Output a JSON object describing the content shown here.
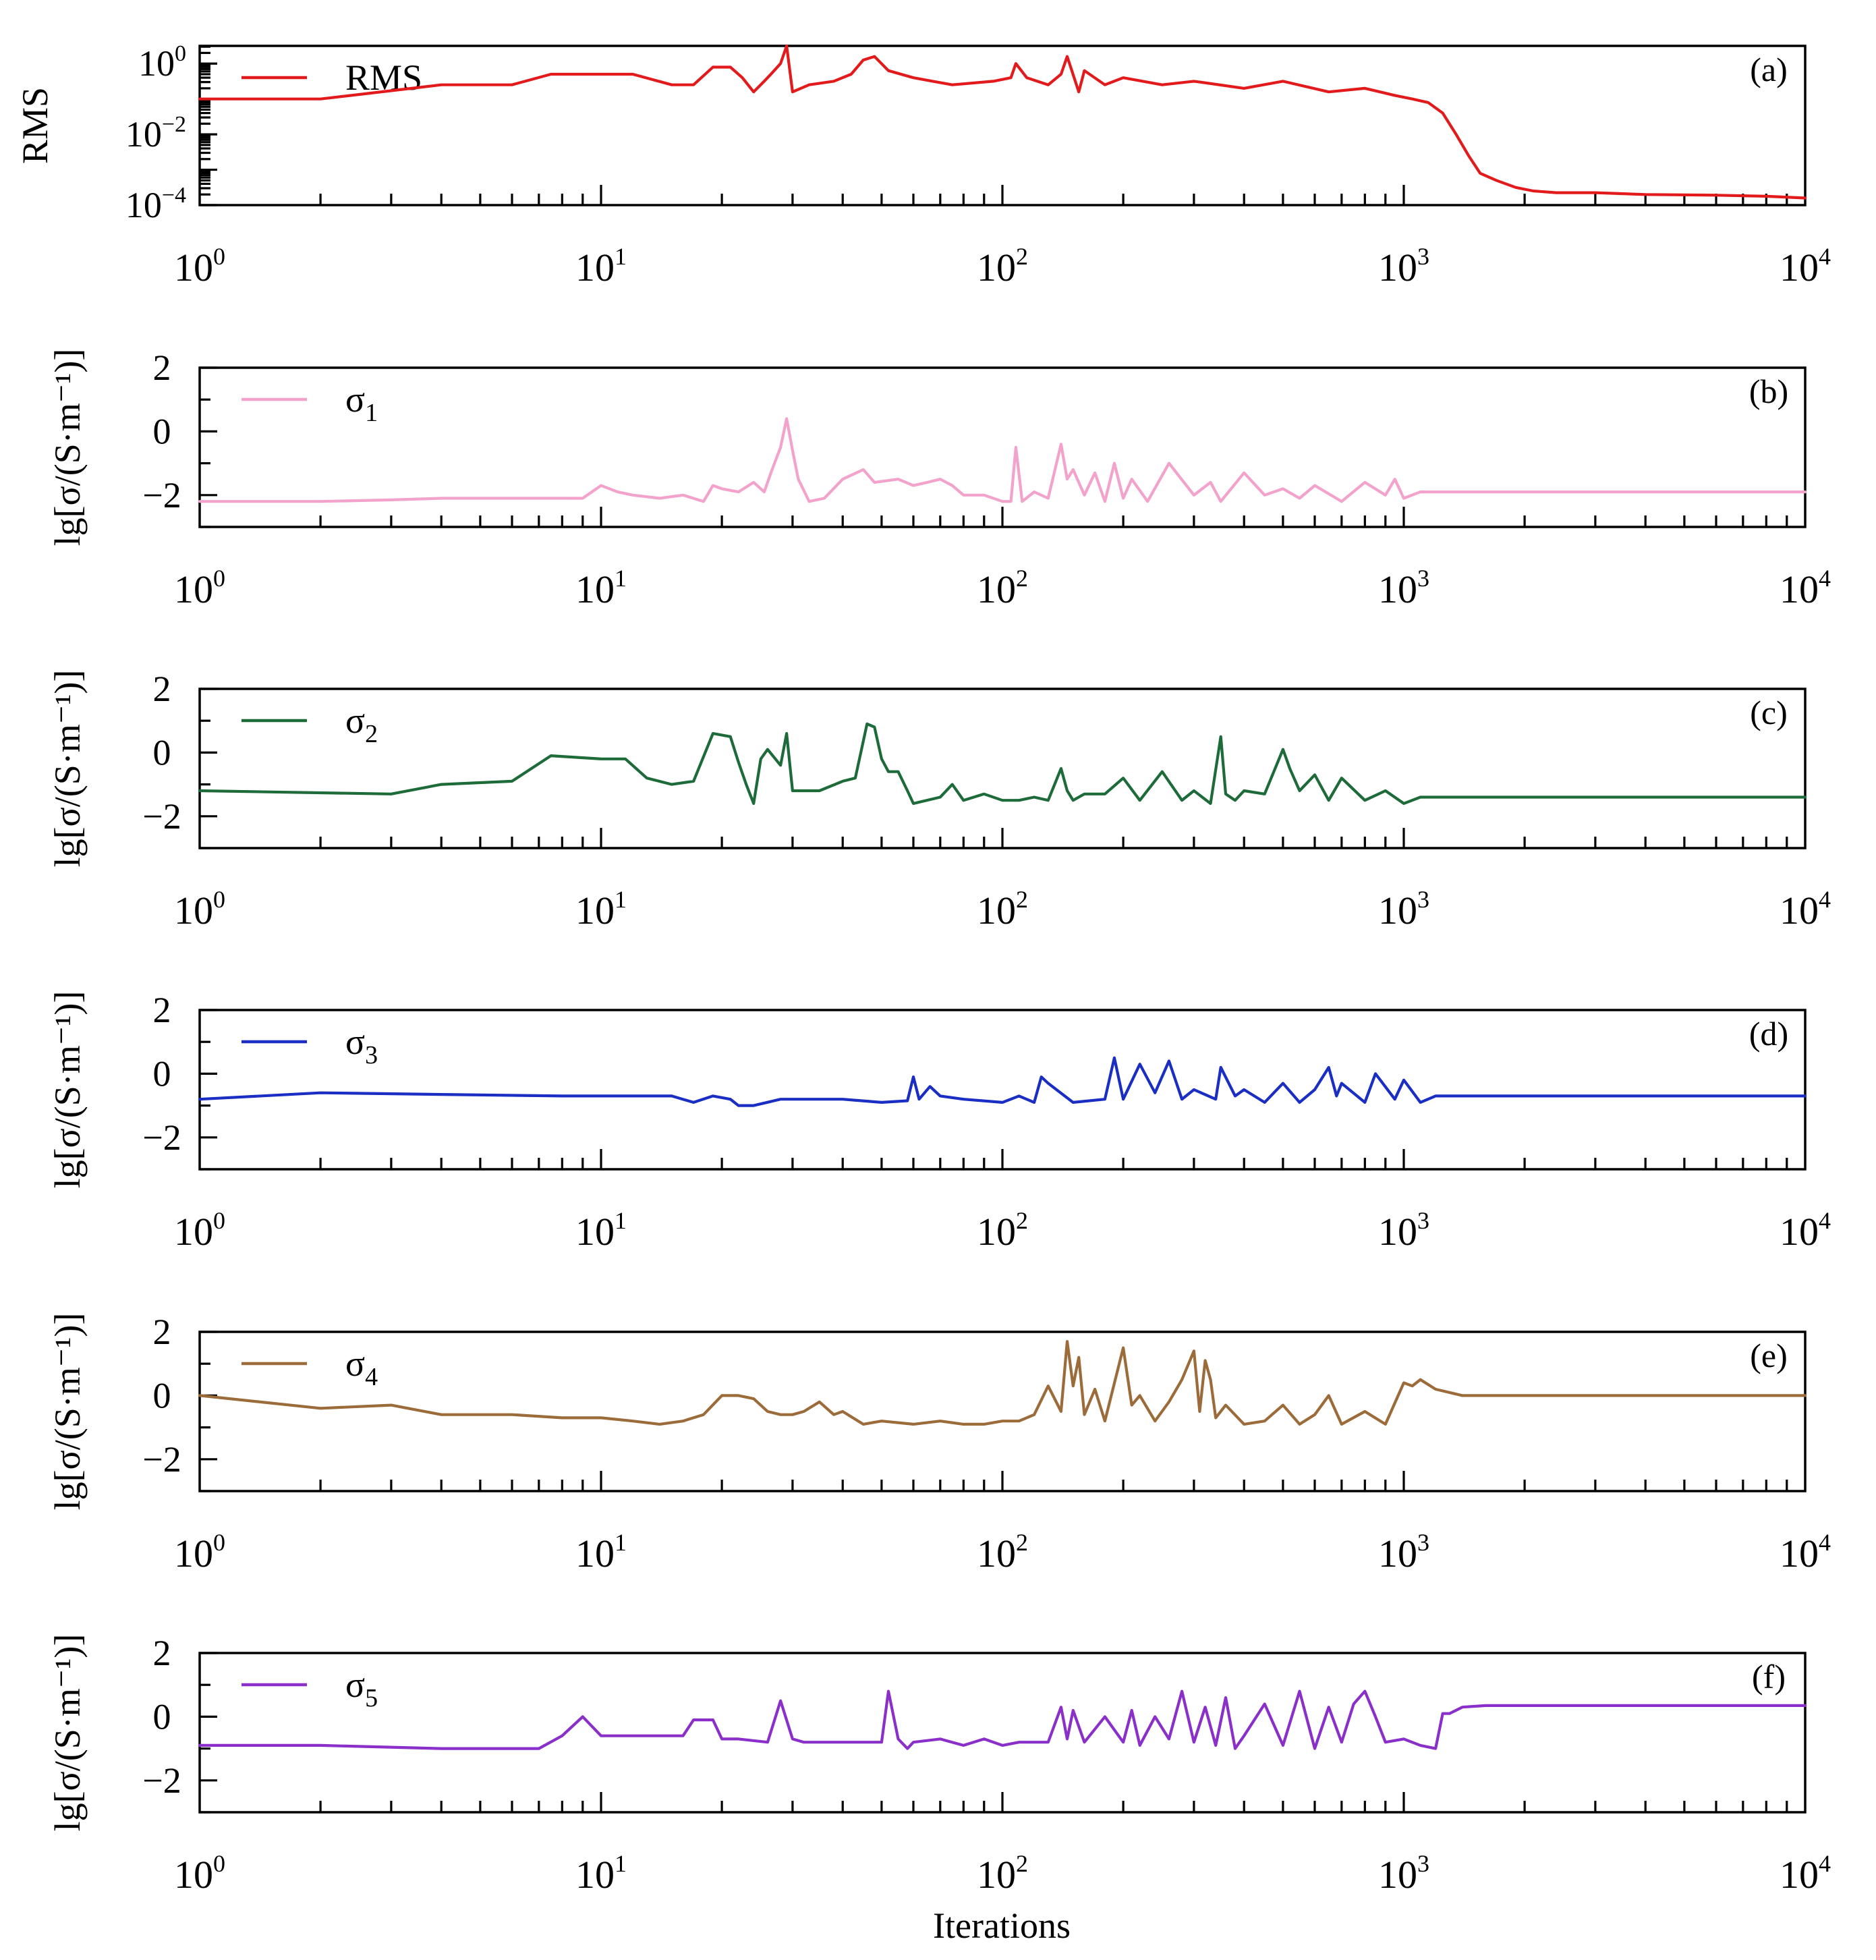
{
  "figure": {
    "x_axis_title": "Iterations",
    "x_tick_labels": [
      {
        "base": "10",
        "exp": "0"
      },
      {
        "base": "10",
        "exp": "1"
      },
      {
        "base": "10",
        "exp": "2"
      },
      {
        "base": "10",
        "exp": "3"
      },
      {
        "base": "10",
        "exp": "4"
      }
    ]
  },
  "chart_data": [
    {
      "type": "line",
      "panel_label": "(a)",
      "ylabel": "RMS",
      "yscale": "log",
      "xscale": "log",
      "xlim": [
        1,
        10000
      ],
      "ylim_log10": [
        -4,
        0.5
      ],
      "y_tick_labels": [
        {
          "base": "10",
          "exp": "0",
          "log10": 0
        },
        {
          "base": "10",
          "exp": "−2",
          "log10": -2
        },
        {
          "base": "10",
          "exp": "−4",
          "log10": -4
        }
      ],
      "legend": {
        "label": "RMS",
        "sub": ""
      },
      "color": "#e31a1c",
      "series_log10_rms": {
        "x": [
          1,
          2,
          4,
          6,
          7.5,
          10,
          12,
          15,
          17,
          19,
          21,
          22.5,
          24,
          25.5,
          26.5,
          28,
          29,
          30,
          33,
          38,
          42,
          45,
          48,
          52,
          60,
          75,
          95,
          105,
          108,
          115,
          130,
          140,
          145,
          155,
          160,
          180,
          200,
          250,
          300,
          400,
          500,
          650,
          800,
          950,
          1050,
          1150,
          1250,
          1350,
          1450,
          1550,
          1700,
          1900,
          2100,
          2400,
          3000,
          4000,
          6000,
          8000,
          10000
        ],
        "y": [
          -1,
          -1,
          -0.6,
          -0.6,
          -0.3,
          -0.3,
          -0.3,
          -0.6,
          -0.6,
          -0.1,
          -0.1,
          -0.4,
          -0.8,
          -0.5,
          -0.3,
          0,
          0.5,
          -0.8,
          -0.6,
          -0.5,
          -0.3,
          0.1,
          0.2,
          -0.2,
          -0.4,
          -0.6,
          -0.5,
          -0.4,
          0,
          -0.4,
          -0.6,
          -0.3,
          0.2,
          -0.8,
          -0.2,
          -0.6,
          -0.4,
          -0.6,
          -0.5,
          -0.7,
          -0.5,
          -0.8,
          -0.7,
          -0.9,
          -1,
          -1.1,
          -1.4,
          -2,
          -2.6,
          -3.1,
          -3.3,
          -3.5,
          -3.6,
          -3.65,
          -3.65,
          -3.7,
          -3.72,
          -3.75,
          -3.8
        ]
      }
    },
    {
      "type": "line",
      "panel_label": "(b)",
      "ylabel": "lg[σ/(S·m⁻¹)]",
      "xscale": "log",
      "xlim": [
        1,
        10000
      ],
      "ylim": [
        -3,
        2
      ],
      "y_ticks": [
        2,
        0,
        -2
      ],
      "y_tick_labels": [
        "2",
        "0",
        "−2"
      ],
      "legend": {
        "label": "σ",
        "sub": "1"
      },
      "color": "#f2a2cb",
      "series": {
        "x": [
          1,
          2,
          3,
          4,
          6,
          8,
          9,
          10,
          11,
          12,
          14,
          16,
          18,
          19,
          20,
          22,
          24,
          25.5,
          26.5,
          28,
          29,
          30,
          31,
          33,
          36,
          40,
          45,
          48,
          55,
          60,
          65,
          70,
          75,
          80,
          90,
          100,
          105,
          108,
          112,
          120,
          130,
          140,
          145,
          150,
          160,
          170,
          180,
          190,
          200,
          210,
          230,
          260,
          300,
          330,
          350,
          400,
          450,
          500,
          550,
          600,
          700,
          800,
          900,
          950,
          1000,
          1100,
          1200,
          1500,
          2000,
          4000,
          10000
        ],
        "y": [
          -2.2,
          -2.2,
          -2.15,
          -2.1,
          -2.1,
          -2.1,
          -2.1,
          -1.7,
          -1.9,
          -2,
          -2.1,
          -2,
          -2.2,
          -1.7,
          -1.8,
          -1.9,
          -1.6,
          -1.9,
          -1.3,
          -0.5,
          0.4,
          -0.6,
          -1.5,
          -2.2,
          -2.1,
          -1.5,
          -1.2,
          -1.6,
          -1.5,
          -1.7,
          -1.6,
          -1.5,
          -1.7,
          -2,
          -2,
          -2.2,
          -2.2,
          -0.5,
          -2.2,
          -1.9,
          -2.1,
          -0.4,
          -1.5,
          -1.2,
          -2,
          -1.3,
          -2.2,
          -1.0,
          -2.1,
          -1.5,
          -2.2,
          -1.0,
          -2.0,
          -1.6,
          -2.2,
          -1.3,
          -2.0,
          -1.8,
          -2.1,
          -1.7,
          -2.2,
          -1.6,
          -2.0,
          -1.5,
          -2.1,
          -1.9,
          -1.9,
          -1.9,
          -1.9,
          -1.9,
          -1.9
        ]
      }
    },
    {
      "type": "line",
      "panel_label": "(c)",
      "ylabel": "lg[σ/(S·m⁻¹)]",
      "xscale": "log",
      "xlim": [
        1,
        10000
      ],
      "ylim": [
        -3,
        2
      ],
      "y_ticks": [
        2,
        0,
        -2
      ],
      "y_tick_labels": [
        "2",
        "0",
        "−2"
      ],
      "legend": {
        "label": "σ",
        "sub": "2"
      },
      "color": "#1e6b3a",
      "series": {
        "x": [
          1,
          3,
          4,
          6,
          7.5,
          10,
          11.5,
          13,
          15,
          17,
          19,
          21,
          22,
          23,
          24,
          25,
          26,
          28,
          29,
          30,
          32,
          35,
          40,
          43,
          46,
          48,
          50,
          52,
          55,
          58,
          60,
          70,
          75,
          80,
          90,
          100,
          110,
          120,
          130,
          140,
          145,
          150,
          160,
          180,
          200,
          220,
          250,
          280,
          300,
          330,
          350,
          360,
          380,
          400,
          450,
          500,
          520,
          550,
          600,
          650,
          700,
          800,
          900,
          1000,
          1100,
          1200,
          1500,
          2000,
          4000,
          10000
        ],
        "y": [
          -1.2,
          -1.3,
          -1.0,
          -0.9,
          -0.1,
          -0.2,
          -0.2,
          -0.8,
          -1.0,
          -0.9,
          0.6,
          0.5,
          -0.3,
          -1.0,
          -1.6,
          -0.2,
          0.1,
          -0.4,
          0.6,
          -1.2,
          -1.2,
          -1.2,
          -0.9,
          -0.8,
          0.9,
          0.8,
          -0.2,
          -0.6,
          -0.6,
          -1.2,
          -1.6,
          -1.4,
          -1.0,
          -1.5,
          -1.3,
          -1.5,
          -1.5,
          -1.4,
          -1.5,
          -0.5,
          -1.2,
          -1.5,
          -1.3,
          -1.3,
          -0.8,
          -1.5,
          -0.6,
          -1.5,
          -1.2,
          -1.6,
          0.5,
          -1.3,
          -1.5,
          -1.2,
          -1.3,
          0.1,
          -0.5,
          -1.2,
          -0.7,
          -1.5,
          -0.8,
          -1.5,
          -1.2,
          -1.6,
          -1.4,
          -1.4,
          -1.4,
          -1.4,
          -1.4,
          -1.4
        ]
      }
    },
    {
      "type": "line",
      "panel_label": "(d)",
      "ylabel": "lg[σ/(S·m⁻¹)]",
      "xscale": "log",
      "xlim": [
        1,
        10000
      ],
      "ylim": [
        -3,
        2
      ],
      "y_ticks": [
        2,
        0,
        -2
      ],
      "y_tick_labels": [
        "2",
        "0",
        "−2"
      ],
      "legend": {
        "label": "σ",
        "sub": "3"
      },
      "color": "#1a2ec4",
      "series": {
        "x": [
          1,
          2,
          4,
          8,
          15,
          17,
          19,
          21,
          22,
          24,
          28,
          32,
          40,
          50,
          58,
          60,
          62,
          66,
          70,
          80,
          100,
          110,
          120,
          125,
          130,
          150,
          180,
          190,
          200,
          220,
          240,
          260,
          280,
          300,
          340,
          350,
          380,
          400,
          450,
          500,
          550,
          600,
          650,
          680,
          700,
          800,
          850,
          950,
          1000,
          1100,
          1200,
          1500,
          2000,
          4000,
          10000
        ],
        "y": [
          -0.8,
          -0.6,
          -0.65,
          -0.7,
          -0.7,
          -0.9,
          -0.7,
          -0.8,
          -1.0,
          -1.0,
          -0.8,
          -0.8,
          -0.8,
          -0.9,
          -0.85,
          -0.1,
          -0.8,
          -0.4,
          -0.7,
          -0.8,
          -0.9,
          -0.7,
          -0.9,
          -0.1,
          -0.3,
          -0.9,
          -0.8,
          0.5,
          -0.8,
          0.3,
          -0.6,
          0.4,
          -0.8,
          -0.5,
          -0.8,
          0.2,
          -0.7,
          -0.5,
          -0.9,
          -0.3,
          -0.9,
          -0.5,
          0.2,
          -0.7,
          -0.3,
          -0.9,
          0.0,
          -0.8,
          -0.2,
          -0.9,
          -0.7,
          -0.7,
          -0.7,
          -0.7,
          -0.7
        ]
      }
    },
    {
      "type": "line",
      "panel_label": "(e)",
      "ylabel": "lg[σ/(S·m⁻¹)]",
      "xscale": "log",
      "xlim": [
        1,
        10000
      ],
      "ylim": [
        -3,
        2
      ],
      "y_ticks": [
        2,
        0,
        -2
      ],
      "y_tick_labels": [
        "2",
        "0",
        "−2"
      ],
      "legend": {
        "label": "σ",
        "sub": "4"
      },
      "color": "#9c6b3a",
      "series": {
        "x": [
          1,
          2,
          3,
          4,
          6,
          8,
          10,
          12,
          14,
          16,
          18,
          20,
          22,
          24,
          26,
          28,
          30,
          32,
          35,
          38,
          40,
          45,
          50,
          60,
          70,
          80,
          90,
          100,
          110,
          120,
          130,
          140,
          145,
          150,
          155,
          160,
          170,
          180,
          200,
          210,
          220,
          240,
          260,
          280,
          300,
          310,
          320,
          330,
          340,
          360,
          400,
          450,
          500,
          550,
          600,
          650,
          700,
          800,
          900,
          1000,
          1050,
          1100,
          1200,
          1400,
          1600,
          2000,
          4000,
          10000
        ],
        "y": [
          0.0,
          -0.4,
          -0.3,
          -0.6,
          -0.6,
          -0.7,
          -0.7,
          -0.8,
          -0.9,
          -0.8,
          -0.6,
          0.0,
          0.0,
          -0.1,
          -0.5,
          -0.6,
          -0.6,
          -0.5,
          -0.2,
          -0.6,
          -0.5,
          -0.9,
          -0.8,
          -0.9,
          -0.8,
          -0.9,
          -0.9,
          -0.8,
          -0.8,
          -0.6,
          0.3,
          -0.5,
          1.7,
          0.3,
          1.2,
          -0.6,
          0.2,
          -0.8,
          1.5,
          -0.3,
          0.0,
          -0.8,
          -0.2,
          0.5,
          1.4,
          -0.5,
          1.1,
          0.5,
          -0.7,
          -0.3,
          -0.9,
          -0.8,
          -0.3,
          -0.9,
          -0.6,
          0.0,
          -0.9,
          -0.5,
          -0.9,
          0.4,
          0.3,
          0.5,
          0.2,
          0.0,
          0.0,
          0.0,
          0.0,
          0.0
        ]
      }
    },
    {
      "type": "line",
      "panel_label": "(f)",
      "ylabel": "lg[σ/(S·m⁻¹)]",
      "xscale": "log",
      "xlim": [
        1,
        10000
      ],
      "ylim": [
        -3,
        2
      ],
      "y_ticks": [
        2,
        0,
        -2
      ],
      "y_tick_labels": [
        "2",
        "0",
        "−2"
      ],
      "legend": {
        "label": "σ",
        "sub": "5"
      },
      "color": "#8a2fc9",
      "series": {
        "x": [
          1,
          2,
          4,
          7,
          8,
          9,
          10,
          12,
          14,
          16,
          17,
          19,
          20,
          22,
          26,
          28,
          30,
          32,
          40,
          50,
          52,
          55,
          58,
          60,
          70,
          80,
          90,
          100,
          110,
          130,
          140,
          145,
          150,
          160,
          180,
          200,
          210,
          220,
          240,
          260,
          280,
          300,
          320,
          340,
          360,
          380,
          400,
          450,
          500,
          550,
          600,
          650,
          700,
          750,
          800,
          850,
          900,
          1000,
          1100,
          1200,
          1250,
          1300,
          1400,
          1600,
          2000,
          4000,
          10000
        ],
        "y": [
          -0.9,
          -0.9,
          -1.0,
          -1.0,
          -0.6,
          0.0,
          -0.6,
          -0.6,
          -0.6,
          -0.6,
          -0.1,
          -0.1,
          -0.7,
          -0.7,
          -0.8,
          0.5,
          -0.7,
          -0.8,
          -0.8,
          -0.8,
          0.8,
          -0.7,
          -1.0,
          -0.8,
          -0.7,
          -0.9,
          -0.7,
          -0.9,
          -0.8,
          -0.8,
          0.3,
          -0.7,
          0.2,
          -0.8,
          0.0,
          -0.8,
          0.2,
          -0.9,
          0.0,
          -0.7,
          0.8,
          -0.8,
          0.3,
          -0.9,
          0.6,
          -1.0,
          -0.6,
          0.4,
          -0.9,
          0.8,
          -1.0,
          0.3,
          -0.8,
          0.4,
          0.8,
          0.0,
          -0.8,
          -0.7,
          -0.9,
          -1.0,
          0.1,
          0.1,
          0.3,
          0.35,
          0.35,
          0.35,
          0.35
        ]
      }
    }
  ]
}
